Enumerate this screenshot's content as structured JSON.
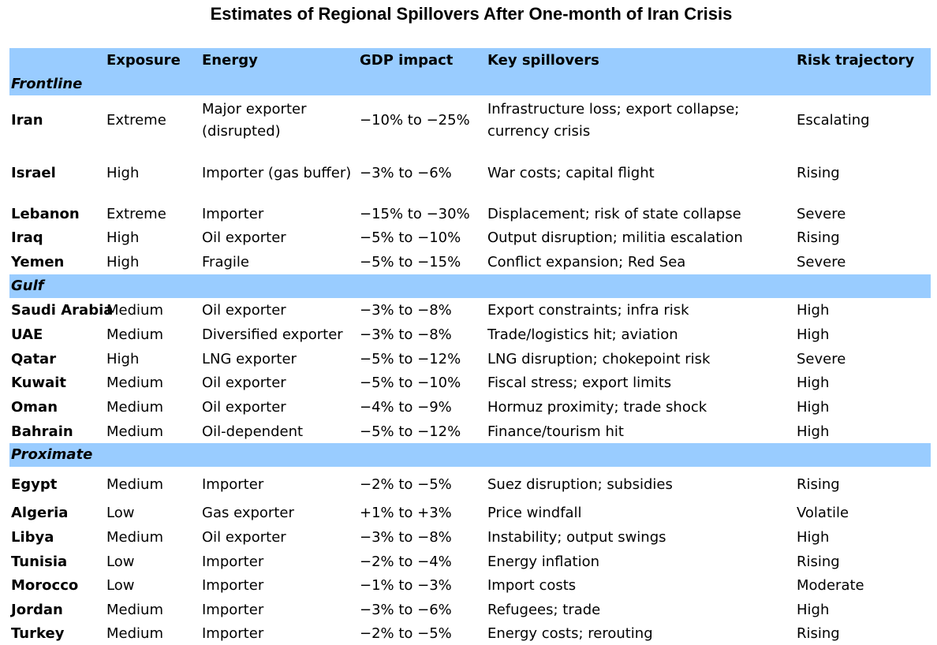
{
  "title": "Estimates of Regional Spillovers After One-month of Iran Crisis",
  "columns": [
    "",
    "Exposure",
    "Energy",
    "GDP impact",
    "Key spillovers",
    "Risk trajectory"
  ],
  "groups": [
    {
      "name": "Frontline",
      "rows": [
        {
          "country": "Iran",
          "exposure": "Extreme",
          "energy": [
            "Major exporter",
            "(disrupted)"
          ],
          "gdp": "−10% to −25%",
          "spillovers": [
            "Infrastructure loss; export collapse;",
            "currency crisis"
          ],
          "risk": "Escalating"
        },
        {
          "country": "Israel",
          "exposure": "High",
          "energy": [
            "Importer (gas buffer)"
          ],
          "gdp": "−3% to −6%",
          "spillovers": [
            "War costs; capital flight"
          ],
          "risk": "Rising"
        },
        {
          "country": "Lebanon",
          "exposure": "Extreme",
          "energy": [
            "Importer"
          ],
          "gdp": "−15% to −30%",
          "spillovers": [
            "Displacement; risk of state collapse"
          ],
          "risk": "Severe"
        },
        {
          "country": "Iraq",
          "exposure": "High",
          "energy": [
            "Oil exporter"
          ],
          "gdp": "−5% to −10%",
          "spillovers": [
            "Output disruption; militia escalation"
          ],
          "risk": "Rising"
        },
        {
          "country": "Yemen",
          "exposure": "High",
          "energy": [
            "Fragile"
          ],
          "gdp": "−5% to −15%",
          "spillovers": [
            "Conflict expansion; Red Sea"
          ],
          "risk": "Severe"
        }
      ]
    },
    {
      "name": "Gulf",
      "rows": [
        {
          "country": "Saudi Arabia",
          "exposure": "Medium",
          "energy": [
            "Oil exporter"
          ],
          "gdp": "−3% to −8%",
          "spillovers": [
            "Export constraints; infra risk"
          ],
          "risk": "High"
        },
        {
          "country": "UAE",
          "exposure": "Medium",
          "energy": [
            "Diversified exporter"
          ],
          "gdp": "−3% to −8%",
          "spillovers": [
            "Trade/logistics hit; aviation"
          ],
          "risk": "High"
        },
        {
          "country": "Qatar",
          "exposure": "High",
          "energy": [
            "LNG exporter"
          ],
          "gdp": "−5% to −12%",
          "spillovers": [
            "LNG disruption; chokepoint risk"
          ],
          "risk": "Severe"
        },
        {
          "country": "Kuwait",
          "exposure": "Medium",
          "energy": [
            "Oil exporter"
          ],
          "gdp": "−5% to −10%",
          "spillovers": [
            "Fiscal stress; export limits"
          ],
          "risk": "High"
        },
        {
          "country": "Oman",
          "exposure": "Medium",
          "energy": [
            "Oil exporter"
          ],
          "gdp": "−4% to −9%",
          "spillovers": [
            "Hormuz proximity; trade shock"
          ],
          "risk": "High"
        },
        {
          "country": "Bahrain",
          "exposure": "Medium",
          "energy": [
            "Oil-dependent"
          ],
          "gdp": "−5% to −12%",
          "spillovers": [
            "Finance/tourism hit"
          ],
          "risk": "High"
        }
      ]
    },
    {
      "name": "Proximate",
      "rows": [
        {
          "country": "Egypt",
          "exposure": "Medium",
          "energy": [
            "Importer"
          ],
          "gdp": "−2% to −5%",
          "spillovers": [
            "Suez disruption; subsidies"
          ],
          "risk": "Rising"
        },
        {
          "country": "Algeria",
          "exposure": "Low",
          "energy": [
            "Gas exporter"
          ],
          "gdp": "+1% to +3%",
          "spillovers": [
            "Price windfall"
          ],
          "risk": "Volatile"
        },
        {
          "country": "Libya",
          "exposure": "Medium",
          "energy": [
            "Oil exporter"
          ],
          "gdp": "−3% to −8%",
          "spillovers": [
            "Instability; output swings"
          ],
          "risk": "High"
        },
        {
          "country": "Tunisia",
          "exposure": "Low",
          "energy": [
            "Importer"
          ],
          "gdp": "−2% to −4%",
          "spillovers": [
            "Energy inflation"
          ],
          "risk": "Rising"
        },
        {
          "country": "Morocco",
          "exposure": "Low",
          "energy": [
            "Importer"
          ],
          "gdp": "−1% to −3%",
          "spillovers": [
            "Import costs"
          ],
          "risk": "Moderate"
        },
        {
          "country": "Jordan",
          "exposure": "Medium",
          "energy": [
            "Importer"
          ],
          "gdp": "−3% to −6%",
          "spillovers": [
            "Refugees; trade"
          ],
          "risk": "High"
        },
        {
          "country": "Turkey",
          "exposure": "Medium",
          "energy": [
            "Importer"
          ],
          "gdp": "−2% to −5%",
          "spillovers": [
            "Energy costs; rerouting"
          ],
          "risk": "Rising"
        }
      ]
    }
  ]
}
